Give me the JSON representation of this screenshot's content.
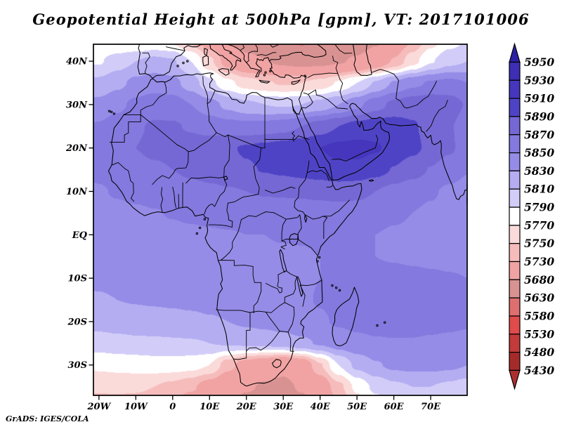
{
  "title": "Geopotential Height at 500hPa [gpm], VT: 2017101006",
  "attribution": "GrADS: IGES/COLA",
  "axes": {
    "lat_labels": [
      "40N",
      "30N",
      "20N",
      "10N",
      "EQ",
      "10S",
      "20S",
      "30S"
    ],
    "lat_values": [
      40,
      30,
      20,
      10,
      0,
      -10,
      -20,
      -30
    ],
    "lon_labels": [
      "20W",
      "10W",
      "0",
      "10E",
      "20E",
      "30E",
      "40E",
      "50E",
      "60E",
      "70E"
    ],
    "lon_values": [
      -20,
      -10,
      0,
      10,
      20,
      30,
      40,
      50,
      60,
      70
    ]
  },
  "colorbar": {
    "tick_labels": [
      "5950",
      "5930",
      "5910",
      "5890",
      "5870",
      "5850",
      "5830",
      "5810",
      "5790",
      "5770",
      "5750",
      "5730",
      "5680",
      "5630",
      "5580",
      "5530",
      "5480",
      "5430"
    ],
    "position": "right"
  },
  "chart_data": {
    "type": "heatmap",
    "title": "Geopotential Height at 500hPa [gpm], VT: 2017101006",
    "variable": "Geopotential Height",
    "pressure_level": "500hPa",
    "units": "gpm",
    "valid_time": "2017101006",
    "lon_range": [
      -21.5,
      79.9
    ],
    "lat_range": [
      -37.0,
      43.9
    ],
    "legend_position": "right",
    "grid_lines": false,
    "contour_levels": [
      5430,
      5480,
      5530,
      5580,
      5630,
      5680,
      5730,
      5750,
      5770,
      5790,
      5810,
      5830,
      5850,
      5870,
      5890,
      5910,
      5930,
      5950
    ],
    "colors_low_to_high": [
      "#ad3030",
      "#a52b2b",
      "#c33a3a",
      "#e04b4b",
      "#dd6f6f",
      "#d99292",
      "#f1a3a3",
      "#f6bcbc",
      "#fbdada",
      "#ffffff",
      "#d2cdf8",
      "#b4adf1",
      "#958ce7",
      "#8379de",
      "#7568d4",
      "#4f43c5",
      "#4536bd",
      "#3d2eb4",
      "#2d20a5"
    ],
    "grid": {
      "lons": [
        -25,
        -20,
        -15,
        -10,
        -5,
        0,
        5,
        10,
        15,
        20,
        25,
        30,
        35,
        40,
        45,
        50,
        55,
        60,
        65,
        70,
        75,
        80,
        85
      ],
      "lats": [
        45,
        40,
        35,
        30,
        25,
        20,
        15,
        10,
        5,
        0,
        -5,
        -10,
        -15,
        -20,
        -25,
        -30,
        -35,
        -40
      ],
      "values": [
        [
          5775,
          5770,
          5765,
          5762,
          5766,
          5762,
          5742,
          5710,
          5678,
          5655,
          5640,
          5630,
          5622,
          5628,
          5638,
          5652,
          5672,
          5700,
          5730,
          5760,
          5780,
          5790,
          5792
        ],
        [
          5790,
          5788,
          5800,
          5810,
          5816,
          5812,
          5790,
          5755,
          5718,
          5694,
          5682,
          5672,
          5666,
          5668,
          5676,
          5686,
          5706,
          5732,
          5762,
          5788,
          5804,
          5810,
          5806
        ],
        [
          5812,
          5815,
          5825,
          5835,
          5840,
          5836,
          5820,
          5796,
          5775,
          5760,
          5752,
          5748,
          5750,
          5758,
          5772,
          5790,
          5812,
          5832,
          5845,
          5852,
          5855,
          5850,
          5842
        ],
        [
          5832,
          5836,
          5845,
          5855,
          5862,
          5860,
          5850,
          5838,
          5825,
          5815,
          5810,
          5808,
          5810,
          5818,
          5830,
          5845,
          5862,
          5875,
          5882,
          5885,
          5880,
          5868,
          5855
        ],
        [
          5848,
          5852,
          5860,
          5868,
          5872,
          5872,
          5868,
          5862,
          5858,
          5856,
          5858,
          5862,
          5870,
          5880,
          5890,
          5898,
          5902,
          5900,
          5892,
          5884,
          5872,
          5860,
          5850
        ],
        [
          5855,
          5858,
          5864,
          5870,
          5874,
          5876,
          5878,
          5882,
          5888,
          5892,
          5896,
          5900,
          5905,
          5910,
          5915,
          5916,
          5912,
          5904,
          5895,
          5885,
          5873,
          5861,
          5851
        ],
        [
          5852,
          5855,
          5860,
          5864,
          5867,
          5870,
          5874,
          5878,
          5884,
          5888,
          5891,
          5894,
          5898,
          5902,
          5906,
          5905,
          5898,
          5889,
          5879,
          5869,
          5859,
          5851,
          5844
        ],
        [
          5845,
          5848,
          5852,
          5855,
          5858,
          5860,
          5863,
          5866,
          5868,
          5870,
          5872,
          5873,
          5874,
          5876,
          5878,
          5876,
          5870,
          5863,
          5857,
          5852,
          5847,
          5843,
          5840
        ],
        [
          5840,
          5842,
          5845,
          5847,
          5849,
          5851,
          5853,
          5855,
          5856,
          5857,
          5858,
          5858,
          5859,
          5860,
          5861,
          5860,
          5857,
          5853,
          5850,
          5847,
          5845,
          5842,
          5840
        ],
        [
          5838,
          5840,
          5842,
          5843,
          5845,
          5846,
          5847,
          5848,
          5849,
          5850,
          5850,
          5851,
          5851,
          5852,
          5852,
          5851,
          5850,
          5848,
          5847,
          5845,
          5843,
          5842,
          5840
        ],
        [
          5836,
          5838,
          5840,
          5841,
          5842,
          5843,
          5844,
          5845,
          5846,
          5847,
          5848,
          5848,
          5849,
          5850,
          5851,
          5851,
          5850,
          5849,
          5848,
          5847,
          5846,
          5845,
          5843
        ],
        [
          5832,
          5834,
          5836,
          5837,
          5838,
          5839,
          5840,
          5841,
          5842,
          5843,
          5845,
          5846,
          5848,
          5850,
          5852,
          5853,
          5854,
          5854,
          5853,
          5852,
          5851,
          5850,
          5848
        ],
        [
          5826,
          5828,
          5830,
          5831,
          5832,
          5833,
          5834,
          5836,
          5838,
          5840,
          5842,
          5845,
          5848,
          5851,
          5854,
          5856,
          5857,
          5857,
          5856,
          5855,
          5854,
          5853,
          5851
        ],
        [
          5815,
          5818,
          5820,
          5822,
          5823,
          5824,
          5826,
          5828,
          5830,
          5833,
          5836,
          5840,
          5844,
          5848,
          5852,
          5855,
          5856,
          5856,
          5855,
          5854,
          5853,
          5852,
          5850
        ],
        [
          5798,
          5800,
          5803,
          5805,
          5806,
          5807,
          5808,
          5810,
          5812,
          5814,
          5816,
          5820,
          5826,
          5832,
          5840,
          5845,
          5848,
          5849,
          5849,
          5848,
          5847,
          5845,
          5842
        ],
        [
          5772,
          5774,
          5776,
          5778,
          5780,
          5780,
          5778,
          5770,
          5738,
          5715,
          5702,
          5690,
          5706,
          5748,
          5790,
          5815,
          5828,
          5834,
          5836,
          5836,
          5834,
          5830,
          5822
        ],
        [
          5752,
          5754,
          5755,
          5754,
          5750,
          5744,
          5734,
          5716,
          5698,
          5684,
          5676,
          5672,
          5684,
          5708,
          5744,
          5775,
          5795,
          5806,
          5810,
          5810,
          5806,
          5800,
          5790
        ],
        [
          5735,
          5736,
          5736,
          5734,
          5728,
          5718,
          5705,
          5690,
          5674,
          5661,
          5654,
          5652,
          5662,
          5685,
          5720,
          5752,
          5775,
          5788,
          5794,
          5794,
          5790,
          5783,
          5772
        ]
      ]
    }
  }
}
